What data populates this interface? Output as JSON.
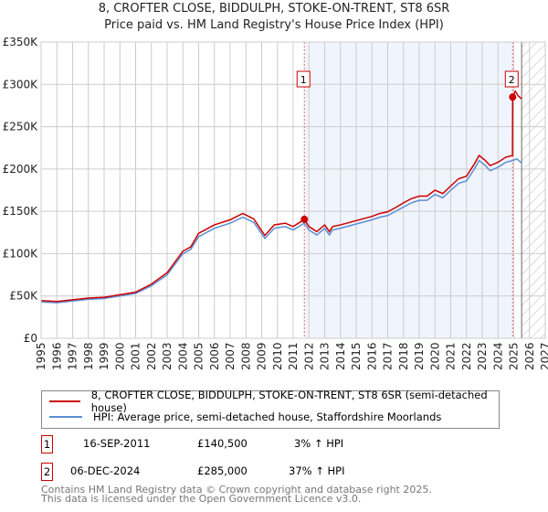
{
  "title": "8, CROFTER CLOSE, BIDDULPH, STOKE-ON-TRENT, ST8 6SR",
  "subtitle": "Price paid vs. HM Land Registry's House Price Index (HPI)",
  "chart_data": {
    "type": "line",
    "title": "8, CROFTER CLOSE, BIDDULPH, STOKE-ON-TRENT, ST8 6SR",
    "xlim": [
      1995,
      2027
    ],
    "ylim": [
      0,
      350000
    ],
    "yticks": [
      "£0",
      "£50K",
      "£100K",
      "£150K",
      "£200K",
      "£250K",
      "£300K",
      "£350K"
    ],
    "xticks": [
      "1995",
      "1996",
      "1997",
      "1998",
      "1999",
      "2000",
      "2001",
      "2002",
      "2003",
      "2004",
      "2005",
      "2006",
      "2007",
      "2008",
      "2009",
      "2010",
      "2011",
      "2012",
      "2013",
      "2014",
      "2015",
      "2016",
      "2017",
      "2018",
      "2019",
      "2020",
      "2021",
      "2022",
      "2023",
      "2024",
      "2025",
      "2026",
      "2027"
    ],
    "series": [
      {
        "name": "8, CROFTER CLOSE, BIDDULPH, STOKE-ON-TRENT, ST8 6SR (semi-detached house)",
        "color": "#cc0000",
        "x": [
          1995,
          1996,
          1997,
          1998,
          1999,
          2000,
          2001,
          2002,
          2003,
          2004,
          2004.5,
          2005,
          2005.5,
          2006,
          2007,
          2007.8,
          2008.5,
          2009.2,
          2009.8,
          2010.5,
          2011,
          2011.71,
          2012,
          2012.5,
          2013,
          2013.3,
          2013.5,
          2014,
          2015,
          2016,
          2016.5,
          2017,
          2017.5,
          2018,
          2018.5,
          2019,
          2019.5,
          2020,
          2020.5,
          2021,
          2021.5,
          2022,
          2022.5,
          2022.8,
          2023.2,
          2023.5,
          2024,
          2024.5,
          2024.92,
          2024.93,
          2025.1,
          2025.3,
          2025.5
        ],
        "y": [
          44500,
          43500,
          45500,
          47500,
          48500,
          51500,
          54500,
          64000,
          77500,
          103000,
          108000,
          124000,
          129000,
          134000,
          140000,
          147500,
          141000,
          121500,
          134000,
          136000,
          132000,
          140500,
          132000,
          126000,
          134000,
          126000,
          132000,
          134000,
          139000,
          144000,
          147500,
          149500,
          154500,
          160000,
          165000,
          168000,
          168000,
          175000,
          171000,
          180000,
          188500,
          191500,
          206000,
          216000,
          210000,
          204000,
          208000,
          214000,
          216000,
          285000,
          292000,
          286000,
          283000
        ]
      },
      {
        "name": "HPI: Average price, semi-detached house, Staffordshire Moorlands",
        "color": "#5b8fd4",
        "x": [
          1995,
          1996,
          1997,
          1998,
          1999,
          2000,
          2001,
          2002,
          2003,
          2004,
          2004.5,
          2005,
          2005.5,
          2006,
          2007,
          2007.8,
          2008.5,
          2009.2,
          2009.8,
          2010.5,
          2011,
          2011.71,
          2012,
          2012.5,
          2013,
          2013.3,
          2013.5,
          2014,
          2015,
          2016,
          2016.5,
          2017,
          2017.5,
          2018,
          2018.5,
          2019,
          2019.5,
          2020,
          2020.5,
          2021,
          2021.5,
          2022,
          2022.5,
          2022.8,
          2023.2,
          2023.5,
          2024,
          2024.5,
          2024.93,
          2025.2,
          2025.5
        ],
        "y": [
          43000,
          42000,
          44000,
          46000,
          47000,
          50000,
          53000,
          62000,
          75000,
          100000,
          105000,
          120000,
          125000,
          130000,
          136000,
          143000,
          137000,
          118000,
          130000,
          132000,
          128000,
          136000,
          128000,
          122000,
          130000,
          122000,
          128000,
          130000,
          135000,
          140000,
          143000,
          145000,
          150000,
          155000,
          160000,
          163000,
          163000,
          170000,
          166000,
          175000,
          183000,
          186000,
          200000,
          210000,
          204000,
          198000,
          202000,
          208000,
          210000,
          212000,
          207000
        ]
      }
    ],
    "annotations": [
      {
        "label": "1",
        "x": 2011.71,
        "y": 140500
      },
      {
        "label": "2",
        "x": 2024.93,
        "y": 285000
      }
    ],
    "shaded_range": [
      2011.71,
      2024.93
    ],
    "forecast_hatch_from": 2025.5
  },
  "legend": {
    "red": "8, CROFTER CLOSE, BIDDULPH, STOKE-ON-TRENT, ST8 6SR (semi-detached house)",
    "blue": "HPI: Average price, semi-detached house, Staffordshire Moorlands"
  },
  "sales": [
    {
      "n": "1",
      "date": "16-SEP-2011",
      "price": "£140,500",
      "hpi": "3% ↑ HPI"
    },
    {
      "n": "2",
      "date": "06-DEC-2024",
      "price": "£285,000",
      "hpi": "37% ↑ HPI"
    }
  ],
  "footer": {
    "line1": "Contains HM Land Registry data © Crown copyright and database right 2025.",
    "line2": "This data is licensed under the Open Government Licence v3.0."
  }
}
